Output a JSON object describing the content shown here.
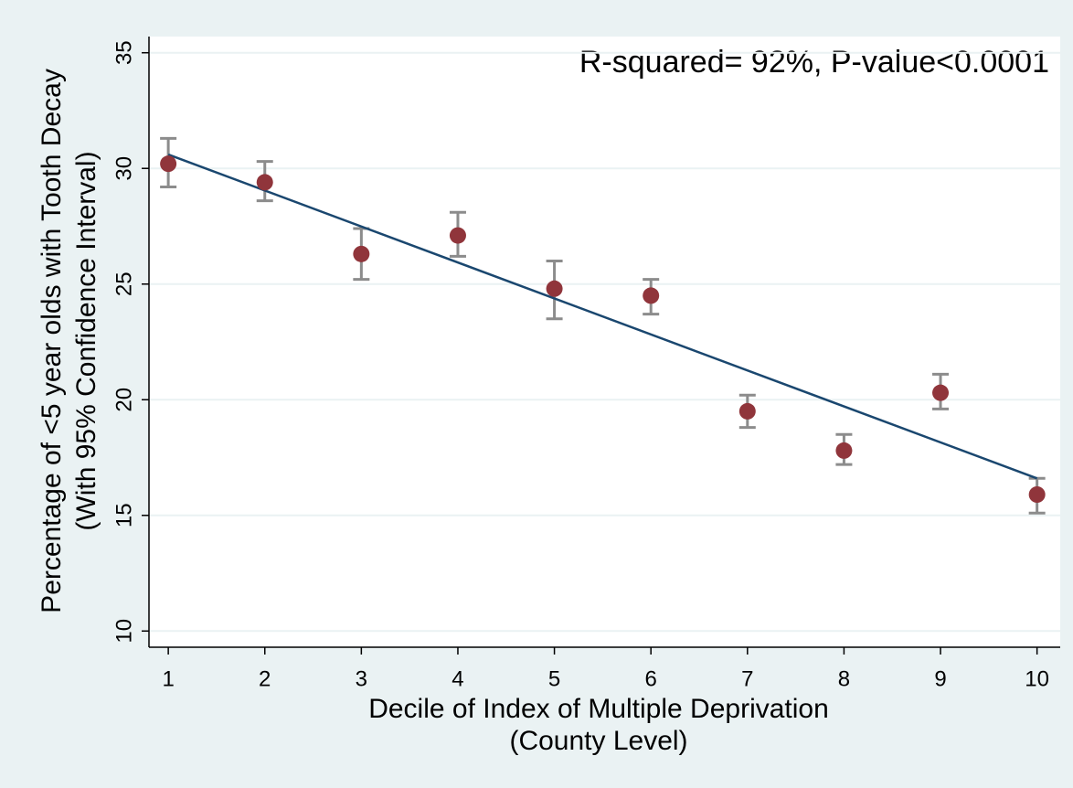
{
  "chart_data": {
    "type": "scatter",
    "annotation": "R-squared= 92%, P-value<0.0001",
    "x_label": [
      "Decile of Index of Multiple Deprivation",
      "(County Level)"
    ],
    "y_label": [
      "Percentage of <5 year olds with Tooth Decay",
      "(With 95% Confidence Interval)"
    ],
    "x": [
      1,
      2,
      3,
      4,
      5,
      6,
      7,
      8,
      9,
      10
    ],
    "values": [
      30.2,
      29.4,
      26.3,
      27.1,
      24.8,
      24.5,
      19.5,
      17.8,
      20.3,
      15.9
    ],
    "lower": [
      29.2,
      28.6,
      25.2,
      26.2,
      23.5,
      23.7,
      18.8,
      17.2,
      19.6,
      15.1
    ],
    "upper": [
      31.3,
      30.3,
      27.4,
      28.1,
      26.0,
      25.2,
      20.2,
      18.5,
      21.1,
      16.6
    ],
    "color": "#90353b",
    "error_color": "#8c8c8c",
    "fit": {
      "x": [
        1,
        10
      ],
      "values": [
        30.6,
        16.6
      ],
      "color": "#1a476f"
    },
    "xlim": [
      0.8,
      10.24
    ],
    "ylim": [
      9.3,
      35.7
    ],
    "xticks": [
      1,
      2,
      3,
      4,
      5,
      6,
      7,
      8,
      9,
      10
    ],
    "yticks": [
      10,
      15,
      20,
      25,
      30,
      35
    ],
    "grid": true
  }
}
